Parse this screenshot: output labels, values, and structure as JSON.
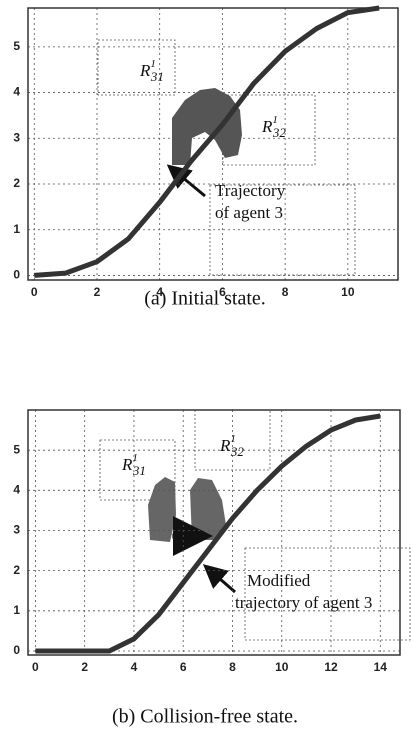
{
  "chart_data": [
    {
      "type": "line",
      "caption": "(a) Initial state.",
      "x": [
        0,
        1,
        2,
        3,
        4,
        5,
        6,
        7,
        8,
        9,
        10,
        11
      ],
      "series": [
        {
          "color": "#333333",
          "values": [
            0,
            0.05,
            0.3,
            0.8,
            1.6,
            2.5,
            3.3,
            4.2,
            4.9,
            5.4,
            5.75,
            5.85
          ]
        }
      ],
      "xlim": [
        -0.2,
        11.6
      ],
      "ylim": [
        -0.1,
        5.85
      ],
      "xticks": [
        0,
        2,
        4,
        6,
        8,
        10
      ],
      "yticks": [
        0,
        1,
        2,
        3,
        4,
        5
      ],
      "grid": true,
      "region_labels": [
        {
          "symbol": "R",
          "superscript": "1",
          "subscript": "31"
        },
        {
          "symbol": "R",
          "superscript": "1",
          "subscript": "32"
        }
      ],
      "annotation": [
        "Trajectory",
        "of agent 3"
      ]
    },
    {
      "type": "line",
      "caption": "(b) Collision-free state.",
      "x": [
        0,
        1,
        2,
        3,
        4,
        5,
        6,
        7,
        8,
        9,
        10,
        11,
        12,
        13,
        14
      ],
      "series": [
        {
          "color": "#333333",
          "values": [
            0,
            0,
            0,
            0,
            0.3,
            0.9,
            1.7,
            2.5,
            3.3,
            4.0,
            4.6,
            5.1,
            5.5,
            5.75,
            5.85
          ]
        }
      ],
      "xlim": [
        -0.3,
        14.8
      ],
      "ylim": [
        -0.1,
        6.0
      ],
      "xticks": [
        0,
        2,
        4,
        6,
        8,
        10,
        12,
        14
      ],
      "yticks": [
        0,
        1,
        2,
        3,
        4,
        5
      ],
      "grid": true,
      "region_labels": [
        {
          "symbol": "R",
          "superscript": "1",
          "subscript": "31"
        },
        {
          "symbol": "R",
          "superscript": "1",
          "subscript": "32"
        }
      ],
      "annotation": [
        "Modified",
        "trajectory of agent 3"
      ]
    }
  ]
}
